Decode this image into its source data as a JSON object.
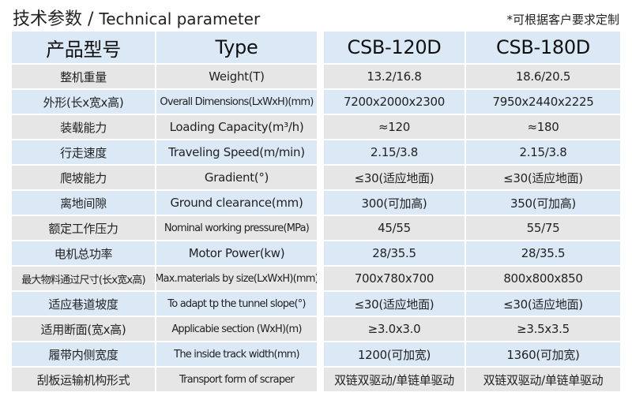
{
  "title": {
    "cn": "技术参数",
    "sep": " / ",
    "en": "Technical parameter"
  },
  "note": "*可根据客户要求定制",
  "header": {
    "cn": "产品型号",
    "en": "Type",
    "models": [
      "CSB-120D",
      "CSB-180D"
    ]
  },
  "rows": [
    {
      "cn": "整机重量",
      "en": "Weight(T)",
      "v1": "13.2/16.8",
      "v2": "18.6/20.5"
    },
    {
      "cn": "外形(长x宽x高)",
      "en": "Overall Dimensions(LxWxH)(mm)",
      "v1": "7200x2000x2300",
      "v2": "7950x2440x2225"
    },
    {
      "cn": "装载能力",
      "en": "Loading Capacity(m³/h)",
      "v1": "≈120",
      "v2": "≈180"
    },
    {
      "cn": "行走速度",
      "en": "Traveling Speed(m/min)",
      "v1": "2.15/3.8",
      "v2": "2.15/3.8"
    },
    {
      "cn": "爬坡能力",
      "en": "Gradient(°)",
      "v1": "≤30(适应地面)",
      "v2": "≤30(适应地面)"
    },
    {
      "cn": "离地间隙",
      "en": "Ground clearance(mm)",
      "v1": "300(可加高)",
      "v2": "350(可加高)"
    },
    {
      "cn": "额定工作压力",
      "en": "Nominal working pressure(MPa)",
      "v1": "45/55",
      "v2": "55/75"
    },
    {
      "cn": "电机总功率",
      "en": "Motor Power(kw)",
      "v1": "28/35.5",
      "v2": "28/35.5"
    },
    {
      "cn": "最大物料通过尺寸(长x宽x高)",
      "en": "Max.materials by size(LxWxH)(mm)",
      "v1": "700x780x700",
      "v2": "800x800x850"
    },
    {
      "cn": "适应巷道坡度",
      "en": "To adapt tp the tunnel slope(°)",
      "v1": "≤30(适应地面)",
      "v2": "≤30(适应地面)"
    },
    {
      "cn": "适用断面(宽x高)",
      "en": "Applicabie section (WxH)(m)",
      "v1": "≥3.0x3.0",
      "v2": "≥3.5x3.5"
    },
    {
      "cn": "履带内侧宽度",
      "en": "The inside track width(mm)",
      "v1": "1200(可加宽)",
      "v2": "1360(可加宽)"
    },
    {
      "cn": "刮板运输机构形式",
      "en": "Transport form of scraper",
      "v1": "双链双驱动/单链单驱动",
      "v2": "双链双驱动/单链单驱动"
    }
  ]
}
